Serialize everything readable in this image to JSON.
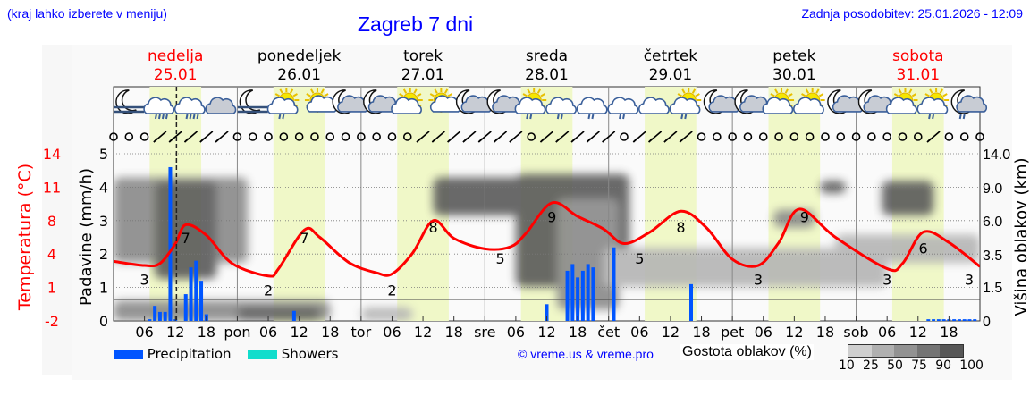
{
  "header": {
    "region_hint": "(kraj lahko izberete v meniju)",
    "title": "Zagreb 7 dni",
    "updated": "Zadnja posodobitev: 25.01.2026 - 12:09"
  },
  "days": [
    {
      "name": "nedelja",
      "date": "25.01",
      "weekend": true
    },
    {
      "name": "ponedeljek",
      "date": "26.01",
      "weekend": false
    },
    {
      "name": "torek",
      "date": "27.01",
      "weekend": false
    },
    {
      "name": "sreda",
      "date": "28.01",
      "weekend": false
    },
    {
      "name": "četrtek",
      "date": "29.01",
      "weekend": false
    },
    {
      "name": "petek",
      "date": "30.01",
      "weekend": false
    },
    {
      "name": "sobota",
      "date": "31.01",
      "weekend": true
    }
  ],
  "colors": {
    "temperature": "#ff0000",
    "precipitation": "#0055ff",
    "showers": "#11ddcc",
    "daylight": "#f0f8c8",
    "title": "#0000ff",
    "weekend": "#ff0000"
  },
  "legend": {
    "precipitation": "Precipitation",
    "showers": "Showers",
    "credit": "© vreme.us & vreme.pro",
    "cloud_density": "Gostota oblakov (%)",
    "cloud_scale": [
      "10",
      "25",
      "50",
      "75",
      "90",
      "100"
    ],
    "cloud_colors": [
      "#cfcfcf",
      "#b0b0b0",
      "#929292",
      "#747474",
      "#575757"
    ]
  },
  "chart_data": {
    "type": "line",
    "xlabel": "",
    "x_ticks": [
      "",
      "06",
      "12",
      "18",
      "pon",
      "06",
      "12",
      "18",
      "tor",
      "06",
      "12",
      "18",
      "sre",
      "06",
      "12",
      "18",
      "čet",
      "06",
      "12",
      "18",
      "pet",
      "06",
      "12",
      "18",
      "sob",
      "06",
      "12",
      "18"
    ],
    "x_range_hours": [
      0,
      168
    ],
    "current_time_hour": 12.2,
    "left_axis_temperature": {
      "label": "Temperatura (°C)",
      "ticks": [
        "14",
        "11",
        "8",
        "4",
        "1",
        "-2"
      ],
      "range": [
        -2,
        14
      ]
    },
    "left_axis_precip": {
      "label": "Padavine (mm/h)",
      "ticks": [
        "5",
        "4",
        "3",
        "2",
        "1",
        "0"
      ],
      "range": [
        0,
        5
      ]
    },
    "right_axis_cloud": {
      "label": "Višina oblakov (km)",
      "ticks": [
        "14.0",
        "9.0",
        "6.0",
        "3.5",
        "1.5",
        "0"
      ]
    },
    "grid": true,
    "temperature": [
      [
        0,
        3.7
      ],
      [
        6,
        3.3
      ],
      [
        9,
        3.5
      ],
      [
        12,
        5.4
      ],
      [
        14,
        7.2
      ],
      [
        18,
        6.2
      ],
      [
        23,
        3.5
      ],
      [
        30,
        2.3
      ],
      [
        32,
        3.0
      ],
      [
        37,
        6.7
      ],
      [
        40,
        6.0
      ],
      [
        45.6,
        3.6
      ],
      [
        51,
        2.6
      ],
      [
        54,
        2.5
      ],
      [
        58,
        4.5
      ],
      [
        62,
        7.6
      ],
      [
        66,
        5.9
      ],
      [
        72,
        4.9
      ],
      [
        77,
        5.1
      ],
      [
        80,
        6.4
      ],
      [
        85,
        9.3
      ],
      [
        90,
        8.0
      ],
      [
        95,
        6.8
      ],
      [
        99,
        5.4
      ],
      [
        104,
        6.5
      ],
      [
        110,
        8.5
      ],
      [
        115,
        6.9
      ],
      [
        120,
        3.9
      ],
      [
        125,
        3.3
      ],
      [
        129,
        5.5
      ],
      [
        133,
        8.7
      ],
      [
        140,
        6.0
      ],
      [
        150,
        3.0
      ],
      [
        153,
        3.5
      ],
      [
        157,
        6.5
      ],
      [
        162,
        5.5
      ],
      [
        168,
        3.2
      ]
    ],
    "temperature_labels": [
      [
        6,
        3
      ],
      [
        14,
        7
      ],
      [
        30,
        2
      ],
      [
        37,
        7
      ],
      [
        54,
        2
      ],
      [
        62,
        8
      ],
      [
        75,
        5
      ],
      [
        85,
        9
      ],
      [
        102,
        5
      ],
      [
        110,
        8
      ],
      [
        125,
        3
      ],
      [
        134,
        9
      ],
      [
        150,
        3
      ],
      [
        157,
        6
      ],
      [
        168,
        3
      ]
    ],
    "precipitation": [
      [
        7,
        0.05
      ],
      [
        8,
        0.45
      ],
      [
        9,
        0.27
      ],
      [
        10,
        0.27
      ],
      [
        11,
        4.6
      ],
      [
        12,
        0.05
      ],
      [
        14,
        0.8
      ],
      [
        15,
        1.6
      ],
      [
        16,
        1.8
      ],
      [
        17,
        1.2
      ],
      [
        18,
        0.2
      ],
      [
        35,
        0.3
      ],
      [
        84,
        0.5
      ],
      [
        88,
        1.5
      ],
      [
        89,
        1.7
      ],
      [
        90,
        1.3
      ],
      [
        91,
        1.5
      ],
      [
        92,
        1.7
      ],
      [
        93,
        1.6
      ],
      [
        97,
        2.2
      ],
      [
        112,
        1.1
      ],
      [
        158,
        0.05
      ],
      [
        159,
        0.05
      ],
      [
        160,
        0.05
      ],
      [
        161,
        0.05
      ],
      [
        162,
        0.05
      ],
      [
        163,
        0.05
      ],
      [
        164,
        0.05
      ],
      [
        165,
        0.05
      ],
      [
        166,
        0.05
      ],
      [
        167,
        0.05
      ]
    ],
    "showers": [],
    "daylight_hours": [
      7,
      17
    ],
    "cloud_cover": [
      {
        "h": [
          0,
          26
        ],
        "km": [
          3.0,
          10.5
        ],
        "density": 75
      },
      {
        "h": [
          8,
          20
        ],
        "km": [
          2.0,
          10.0
        ],
        "density": 90
      },
      {
        "h": [
          0,
          42
        ],
        "km": [
          0,
          0.9
        ],
        "density": 75
      },
      {
        "h": [
          24,
          40
        ],
        "km": [
          0,
          0.6
        ],
        "density": 90
      },
      {
        "h": [
          48,
          58
        ],
        "km": [
          0,
          0.6
        ],
        "density": 50
      },
      {
        "h": [
          62,
          80
        ],
        "km": [
          6.5,
          10.5
        ],
        "density": 90
      },
      {
        "h": [
          78,
          100
        ],
        "km": [
          1.5,
          11.0
        ],
        "density": 90
      },
      {
        "h": [
          86,
          98
        ],
        "km": [
          0.5,
          8.0
        ],
        "density": 75
      },
      {
        "h": [
          95,
          150
        ],
        "km": [
          1.5,
          4.0
        ],
        "density": 50
      },
      {
        "h": [
          128,
          136
        ],
        "km": [
          5.5,
          7.0
        ],
        "density": 75
      },
      {
        "h": [
          137,
          142
        ],
        "km": [
          8.5,
          10.0
        ],
        "density": 90
      },
      {
        "h": [
          140,
          168
        ],
        "km": [
          3.0,
          5.0
        ],
        "density": 50
      },
      {
        "h": [
          149,
          159
        ],
        "km": [
          6.5,
          10.0
        ],
        "density": 90
      }
    ],
    "weather_icons": [
      "moon-fog",
      "cloud-heavy-rain",
      "cloud-heavy-rain",
      "cloudy",
      "moon-fog",
      "sun-cloud-light-rain",
      "sun-small-cloud",
      "moon-cloud",
      "moon-cloud",
      "sun-cloud",
      "sun-small-cloud",
      "moon-cloud",
      "moon-cloud",
      "sun-cloud-light-rain",
      "cloud-light-rain",
      "cloud-light-rain",
      "cloud-light-rain",
      "cloud",
      "sun-cloud-light-rain",
      "moon-cloud",
      "moon-cloud",
      "sun-cloud",
      "sun-cloud",
      "moon-cloud",
      "moon-cloud",
      "sun-cloud",
      "sun-cloud-light-rain",
      "moon-cloud-light-rain"
    ],
    "wind": [
      "calm",
      "calm",
      "calm",
      "barb",
      "barb",
      "barb",
      "barb",
      "barb",
      "calm",
      "calm",
      "calm",
      "calm",
      "calm",
      "calm",
      "calm",
      "calm",
      "calm",
      "calm",
      "calm",
      "calm",
      "barb",
      "barb",
      "barb",
      "barb",
      "barb",
      "barb",
      "barb",
      "calm",
      "barb",
      "barb",
      "barb",
      "barb",
      "barb",
      "calm",
      "barb",
      "barb",
      "barb",
      "barb",
      "calm",
      "calm",
      "calm",
      "calm",
      "calm",
      "calm",
      "calm",
      "calm",
      "calm",
      "calm",
      "calm",
      "calm",
      "calm",
      "calm",
      "calm",
      "barb",
      "calm",
      "calm",
      "calm"
    ]
  }
}
